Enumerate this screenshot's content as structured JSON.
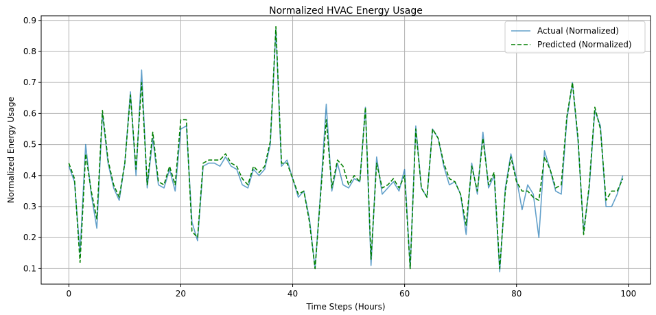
{
  "chart_data": {
    "type": "line",
    "title": "Normalized HVAC Energy Usage",
    "xlabel": "Time Steps (Hours)",
    "ylabel": "Normalized Energy Usage",
    "xlim": [
      -4.95,
      103.95
    ],
    "ylim": [
      0.05,
      0.915
    ],
    "xticks": [
      0,
      20,
      40,
      60,
      80,
      100
    ],
    "yticks": [
      0.1,
      0.2,
      0.3,
      0.4,
      0.5,
      0.6,
      0.7,
      0.8,
      0.9
    ],
    "xtick_labels": [
      "0",
      "20",
      "40",
      "60",
      "80",
      "100"
    ],
    "ytick_labels": [
      "0.1",
      "0.2",
      "0.3",
      "0.4",
      "0.5",
      "0.6",
      "0.7",
      "0.8",
      "0.9"
    ],
    "grid": true,
    "legend_position": "upper right",
    "x": [
      0,
      1,
      2,
      3,
      4,
      5,
      6,
      7,
      8,
      9,
      10,
      11,
      12,
      13,
      14,
      15,
      16,
      17,
      18,
      19,
      20,
      21,
      22,
      23,
      24,
      25,
      26,
      27,
      28,
      29,
      30,
      31,
      32,
      33,
      34,
      35,
      36,
      37,
      38,
      39,
      40,
      41,
      42,
      43,
      44,
      45,
      46,
      47,
      48,
      49,
      50,
      51,
      52,
      53,
      54,
      55,
      56,
      57,
      58,
      59,
      60,
      61,
      62,
      63,
      64,
      65,
      66,
      67,
      68,
      69,
      70,
      71,
      72,
      73,
      74,
      75,
      76,
      77,
      78,
      79,
      80,
      81,
      82,
      83,
      84,
      85,
      86,
      87,
      88,
      89,
      90,
      91,
      92,
      93,
      94,
      95,
      96,
      97,
      98,
      99
    ],
    "series": [
      {
        "name": "Actual (Normalized)",
        "color": "#1f77b4",
        "style": "solid",
        "values": [
          0.43,
          0.38,
          0.15,
          0.5,
          0.34,
          0.23,
          0.6,
          0.44,
          0.36,
          0.32,
          0.44,
          0.67,
          0.4,
          0.74,
          0.36,
          0.52,
          0.37,
          0.36,
          0.42,
          0.35,
          0.55,
          0.56,
          0.25,
          0.19,
          0.43,
          0.44,
          0.44,
          0.43,
          0.46,
          0.43,
          0.42,
          0.37,
          0.36,
          0.42,
          0.4,
          0.42,
          0.5,
          0.87,
          0.43,
          0.45,
          0.39,
          0.33,
          0.35,
          0.26,
          0.1,
          0.35,
          0.63,
          0.35,
          0.44,
          0.37,
          0.36,
          0.39,
          0.38,
          0.62,
          0.11,
          0.46,
          0.34,
          0.36,
          0.38,
          0.35,
          0.42,
          0.1,
          0.56,
          0.36,
          0.33,
          0.55,
          0.52,
          0.43,
          0.37,
          0.38,
          0.34,
          0.21,
          0.44,
          0.34,
          0.54,
          0.36,
          0.4,
          0.09,
          0.36,
          0.47,
          0.39,
          0.29,
          0.37,
          0.34,
          0.2,
          0.48,
          0.42,
          0.35,
          0.34,
          0.58,
          0.7,
          0.51,
          0.22,
          0.36,
          0.61,
          0.56,
          0.3,
          0.3,
          0.34,
          0.4
        ]
      },
      {
        "name": "Predicted (Normalized)",
        "color": "#007f00",
        "style": "dashed",
        "values": [
          0.44,
          0.39,
          0.12,
          0.47,
          0.35,
          0.26,
          0.61,
          0.45,
          0.37,
          0.33,
          0.44,
          0.66,
          0.42,
          0.7,
          0.37,
          0.54,
          0.38,
          0.37,
          0.43,
          0.37,
          0.58,
          0.58,
          0.22,
          0.2,
          0.44,
          0.45,
          0.45,
          0.45,
          0.47,
          0.44,
          0.43,
          0.39,
          0.37,
          0.43,
          0.41,
          0.43,
          0.51,
          0.88,
          0.44,
          0.44,
          0.39,
          0.34,
          0.35,
          0.25,
          0.1,
          0.34,
          0.58,
          0.36,
          0.45,
          0.43,
          0.37,
          0.4,
          0.38,
          0.62,
          0.13,
          0.44,
          0.36,
          0.37,
          0.39,
          0.36,
          0.4,
          0.1,
          0.55,
          0.36,
          0.33,
          0.55,
          0.52,
          0.44,
          0.39,
          0.38,
          0.34,
          0.24,
          0.43,
          0.35,
          0.52,
          0.37,
          0.41,
          0.1,
          0.35,
          0.46,
          0.38,
          0.35,
          0.35,
          0.33,
          0.32,
          0.46,
          0.42,
          0.36,
          0.37,
          0.59,
          0.7,
          0.52,
          0.21,
          0.37,
          0.62,
          0.55,
          0.32,
          0.35,
          0.35,
          0.39
        ]
      }
    ]
  }
}
